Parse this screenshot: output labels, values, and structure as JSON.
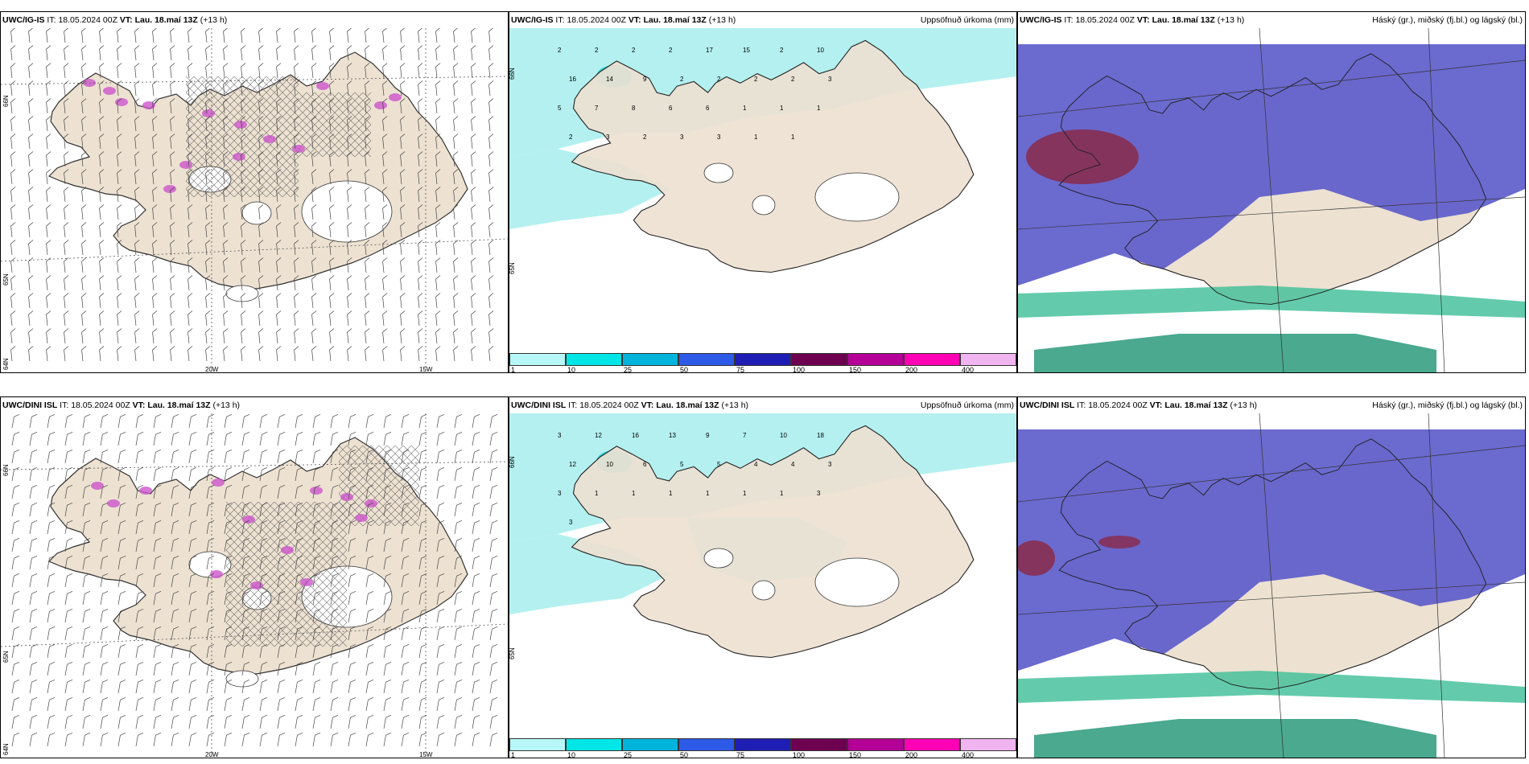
{
  "colors": {
    "land": "#ede1d1",
    "precip_light": "#b4f0f0",
    "precip_mid": "#2fd2d2",
    "cloud_high": "#c83232",
    "cloud_mid": "#5a5aca",
    "cloud_low": "#3cbe96",
    "hatch": "#555555",
    "convective": "#cc55cc"
  },
  "rows": [
    {
      "panels": [
        {
          "model": "UWC/IG-IS",
          "it_label": "IT:",
          "it_value": "18.05.2024 00Z",
          "vt_label": "VT:",
          "vt_value": "Lau. 18.maí 13Z",
          "lead": "(+13 h)",
          "title_right": "",
          "lat_labels": [
            "66N",
            "65N",
            "64N"
          ],
          "lon_labels": [
            "20W",
            "15W"
          ]
        },
        {
          "model": "UWC/IG-IS",
          "it_label": "IT:",
          "it_value": "18.05.2024 00Z",
          "vt_label": "VT:",
          "vt_value": "Lau. 18.maí 13Z",
          "lead": "(+13 h)",
          "title_right": "Uppsöfnuð úrkoma (mm)",
          "lat_labels": [
            "66N",
            "65N"
          ],
          "precip_numbers": [
            "2",
            "2",
            "2",
            "2",
            "17",
            "15",
            "2",
            "10",
            "16",
            "14",
            "9",
            "2",
            "2",
            "2",
            "2",
            "3",
            "5",
            "7",
            "8",
            "6",
            "6",
            "1",
            "1",
            "1",
            "2",
            "3",
            "2",
            "3",
            "3",
            "1",
            "1"
          ]
        },
        {
          "model": "UWC/IG-IS",
          "it_label": "IT:",
          "it_value": "18.05.2024 00Z",
          "vt_label": "VT:",
          "vt_value": "Lau. 18.maí 13Z",
          "lead": "(+13 h)",
          "title_right": "Háský (gr.), miðský (fj.bl.) og lágský (bl.)"
        }
      ]
    },
    {
      "panels": [
        {
          "model": "UWC/DINI ISL",
          "it_label": "IT:",
          "it_value": "18.05.2024 00Z",
          "vt_label": "VT:",
          "vt_value": "Lau. 18.maí 13Z",
          "lead": "(+13 h)",
          "title_right": "",
          "lat_labels": [
            "66N",
            "65N",
            "64N"
          ],
          "lon_labels": [
            "20W",
            "15W"
          ]
        },
        {
          "model": "UWC/DINI ISL",
          "it_label": "IT:",
          "it_value": "18.05.2024 00Z",
          "vt_label": "VT:",
          "vt_value": "Lau. 18.maí 13Z",
          "lead": "(+13 h)",
          "title_right": "Uppsöfnuð úrkoma (mm)",
          "lat_labels": [
            "66N",
            "65N"
          ],
          "precip_numbers": [
            "3",
            "12",
            "16",
            "13",
            "9",
            "7",
            "10",
            "18",
            "12",
            "10",
            "6",
            "5",
            "5",
            "4",
            "4",
            "3",
            "3",
            "1",
            "1",
            "1",
            "1",
            "1",
            "1",
            "3",
            "3"
          ]
        },
        {
          "model": "UWC/DINI ISL",
          "it_label": "IT:",
          "it_value": "18.05.2024 00Z",
          "vt_label": "VT:",
          "vt_value": "Lau. 18.maí 13Z",
          "lead": "(+13 h)",
          "title_right": "Háský (gr.), miðský (fj.bl.) og lágský (bl.)"
        }
      ]
    }
  ],
  "colorbar": {
    "ticks": [
      "1",
      "10",
      "25",
      "50",
      "75",
      "100",
      "150",
      "200",
      "400"
    ],
    "colors": [
      "#b7f7f7",
      "#00e5e5",
      "#00b4dc",
      "#2d5ae6",
      "#1e1eb4",
      "#6e0050",
      "#b40096",
      "#ff00b4",
      "#f0b4f0"
    ]
  }
}
